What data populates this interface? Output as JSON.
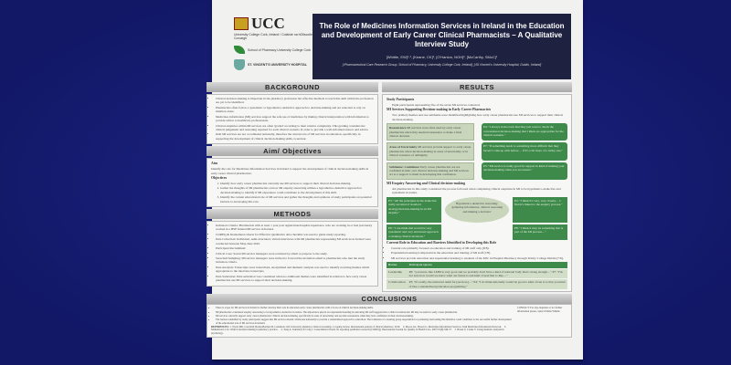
{
  "logos": {
    "ucc": "UCC",
    "ucc_sub": "University College Cork, Ireland / Coláiste na hOllscoile Corcaigh",
    "pharmacy": "School of Pharmacy University College Cork",
    "svuh": "ST. VINCENT'S UNIVERSITY HOSPITAL"
  },
  "header": {
    "title": "The Role of Medicines Information Services in Ireland in the Education and Development of Early Career Clinical Pharmacists – A Qualitative Interview Study",
    "authors": "[Whittle, EW]¹˒², [Keane, CK]², [O'Hanlon, NOH]², [McCarthy, SMcC]¹",
    "affiliations": "[¹Pharmaceutical Care Research Group, School of Pharmacy, University College Cork, Ireland]; [²St Vincent's University Hospital, Dublin, Ireland]"
  },
  "background": {
    "heading": "BACKGROUND",
    "bullets": [
      "Clinical decision-making is important in the pharmacy profession but effective methods to teach this skill within the profession are yet to be identified.",
      "Pharmacists often follow a systematic or hypothetico-deductive approach to decision-making and are reluctant to rely on intuition alone.",
      "Medicines information (MI) services support the safe use of medicines by linking clinical interpretation with information to provide advice to healthcare professionals.",
      "Clinical enquiries within MI services are often 'graded' according to their relative complexity. This grading considers the clinical judgement and reasoning required for each clinical scenario in order to provide a well-informed answer and advice.",
      "Irish MI services are not coordinated nationally, therefore the current role of MI services in education, specifically in supporting the development of clinical decision-making skills, is unclear."
    ]
  },
  "aims": {
    "heading": "Aim/ Objectives",
    "aim_label": "Aim",
    "aim": "Identify the role for Medicines Information Services in Ireland to support the development of clinical decision-making skills in early career clinical pharmacists.",
    "objectives_label": "Objectives",
    "objectives": [
      "Identify how early career pharmacists currently use MI services to support their clinical decision-making.",
      "Gather the thoughts of MI pharmacists on how MI enquiry answering utilises a hypothetico-deductive approach to decision-making to identify if MI experience could contribute to the development of this skill.",
      "Identify the current educational role of MI services and gather the thoughts and opinions of study participants on potential barriers to developing this role."
    ]
  },
  "methods": {
    "heading": "METHODS",
    "bullets": [
      "Inclusion Criteria: Pharmacists with at least 1 year post registration/hospital experience, who are working in or had previously worked in a HSE funded MI service in Ireland.",
      "COREQ & Donnelland criteria for Effective Qualitative data checklist was used to guide study reporting.",
      "Data Collection: Individual, semi-structured, virtual interviews with MI pharmacists representing MI services in Ireland were conducted between May-June 2022.",
      "Participant Recruitment:",
      "Critical Case: Seven MI service managers were recruited by email or purpose to the study.",
      "Snowball Sampling: MI service managers were invited to forward the invitation email to pharmacists who met the study inclusion criteria.",
      "Data Analysis: Transcripts were transcribed, anonymised and thematic analysis was used to identify recurring themes which appropriate to the interview transcripts.",
      "Data Saturation: Data saturation was considered when no additional themes were identified in relation to how early career pharmacists use MI services to support their decision-making."
    ]
  },
  "results": {
    "heading": "RESULTS",
    "participants_label": "Study Participants",
    "participants": "Eight participants representing five of the seven MI services contacted.",
    "support_label": "MI Services Supporting Decision-making in Early Career Pharmacists",
    "support_text": "Two primary themes and one subtheme were identified highlighting how early career pharmacists use MI services to support their clinical decision-making.",
    "themes": [
      {
        "label": "Reassurance",
        "text": "MI services were often used by early career pharmacists when they needed reassurance to make a final clinical decision.",
        "quote": "P4: \"I always in the back that they just want to check the conventional decision-making that I think are appropriate for the clinical scenario.\""
      },
      {
        "label": "Areas of Uncertainty",
        "text": "MI services provide support to early career pharmacists when decision-making in areas of uncertainty or in clinical scenarios of ambiguity.",
        "quote": "P7: \"If something tends to something more difficult that they haven't come up with before… if it's a bit more of a tricky one.\""
      },
      {
        "label": "Subtheme: Confidence",
        "text": "Early career pharmacists are not confident in their own clinical decision-making and MI services act as a support to them in developing this confidence.",
        "quote": "P5: \"MI service is really good for support in kind of making your decision-making when you are unsure.\""
      }
    ],
    "enquiry_label": "MI Enquiry Answering and Clinical decision-making",
    "enquiry_text": "All pharmacists in this study considered the process followed when completing clinical enquiries in MI to be hypothetico-deductive and systematic in nature.",
    "ellipse": "Hypothetico-deductive reasoning: 'gathering information, clinical reasoning and making a decision'",
    "enquiry_quotes": [
      "P3: \"All the principles in the deductive really are kind of standard analogy/decision-making in an MI enquiry.\"",
      "P4: \"I think it's very, very closely… I find it's linked to the enquiry process.\"",
      "P6: \"I can think that would be very systematic and very structured approach to making clinical decisions.\"",
      "P8: \"I think it may be something that is part of the MI process…\""
    ],
    "role_label": "Current Role in Education and Barriers Identified to Developing this Role",
    "role_bullets": [
      "Current role primarily focused on education and training of MI staff only (8/8).",
      "Experiential learning is important in the education and training of MI staff (7/8).",
      "MI services provide education and experiential learning to students of the MSc in Hospital Pharmacy through Trinity College Dublin (7/8)."
    ],
    "table_headers": [
      "Barrier",
      "Participant Quotes"
    ],
    "table_rows": [
      {
        "barrier": "Leadership",
        "quote": "P6: \"you know like LMM is very good and we probably don't have a kind of national body that's strong enough…\" P7: \"I'm not sure how would we know what our future is and kind of lead that to like…\""
      },
      {
        "barrier": "Collaboration",
        "quote": "P3: \"It's really, the universal remit for [services]…\" P4: \"I do think nationally would be good to kind of run it so that you kind of like a standardised [education programme].\""
      }
    ]
  },
  "conclusions": {
    "heading": "CONCLUSIONS",
    "bullets": [
      "There is scope for MI services in Ireland to further develop their role in education early career pharmacists with a focus on clinical decision-making skills.",
      "MI pharmacists considered enquiry answering to be hypothetico-deductive in nature. The importance placed on experiential learning in educating MI staff suggests that a clinical rotation into MI may be useful to early career pharmacists.",
      "MI services currently support early career pharmacists' clinical decision-making, specifically in areas of uncertainty and provide reassurance when they lack confidence in their decision-making.",
      "The barriers identified by study participants suggest that MI services should collaborate nationally to provide a standardised approach to education. The formation of a steering group responsible for promoting and leading this initiative could contribute to the successful further development of the educational role of MI services in Ireland."
    ],
    "contact": "CONTACT: For any enquiries or for further information please contact Emma Whittle"
  },
  "references": {
    "label": "REFERENCES:",
    "items": [
      "1. Wyatt MR, Cole KM, Boden-Bermut M, Commack LM. University pharmacy clinical reasoning: a scoping review. International journal of clinical pharmacy. 2019.",
      "2. Moore AC, Brown G. Medicines Information Services. Irish Medicines Information Network.",
      "3. Maheshwari et al. Clinical decision making in pharmacy practice.",
      "4. Tong A, Sainsbury P, Craig J. Consolidated criteria for reporting qualitative research (COREQ). International Journal for Quality in Health Care. 2007;19(6):349-57.",
      "5. Braun V, Clarke V. Using thematic analysis in psychology."
    ]
  },
  "colors": {
    "background": "#151c72",
    "title_box": "#1e2140",
    "theme_green": "#3d8a4a",
    "theme_light": "#c9d6bc"
  }
}
